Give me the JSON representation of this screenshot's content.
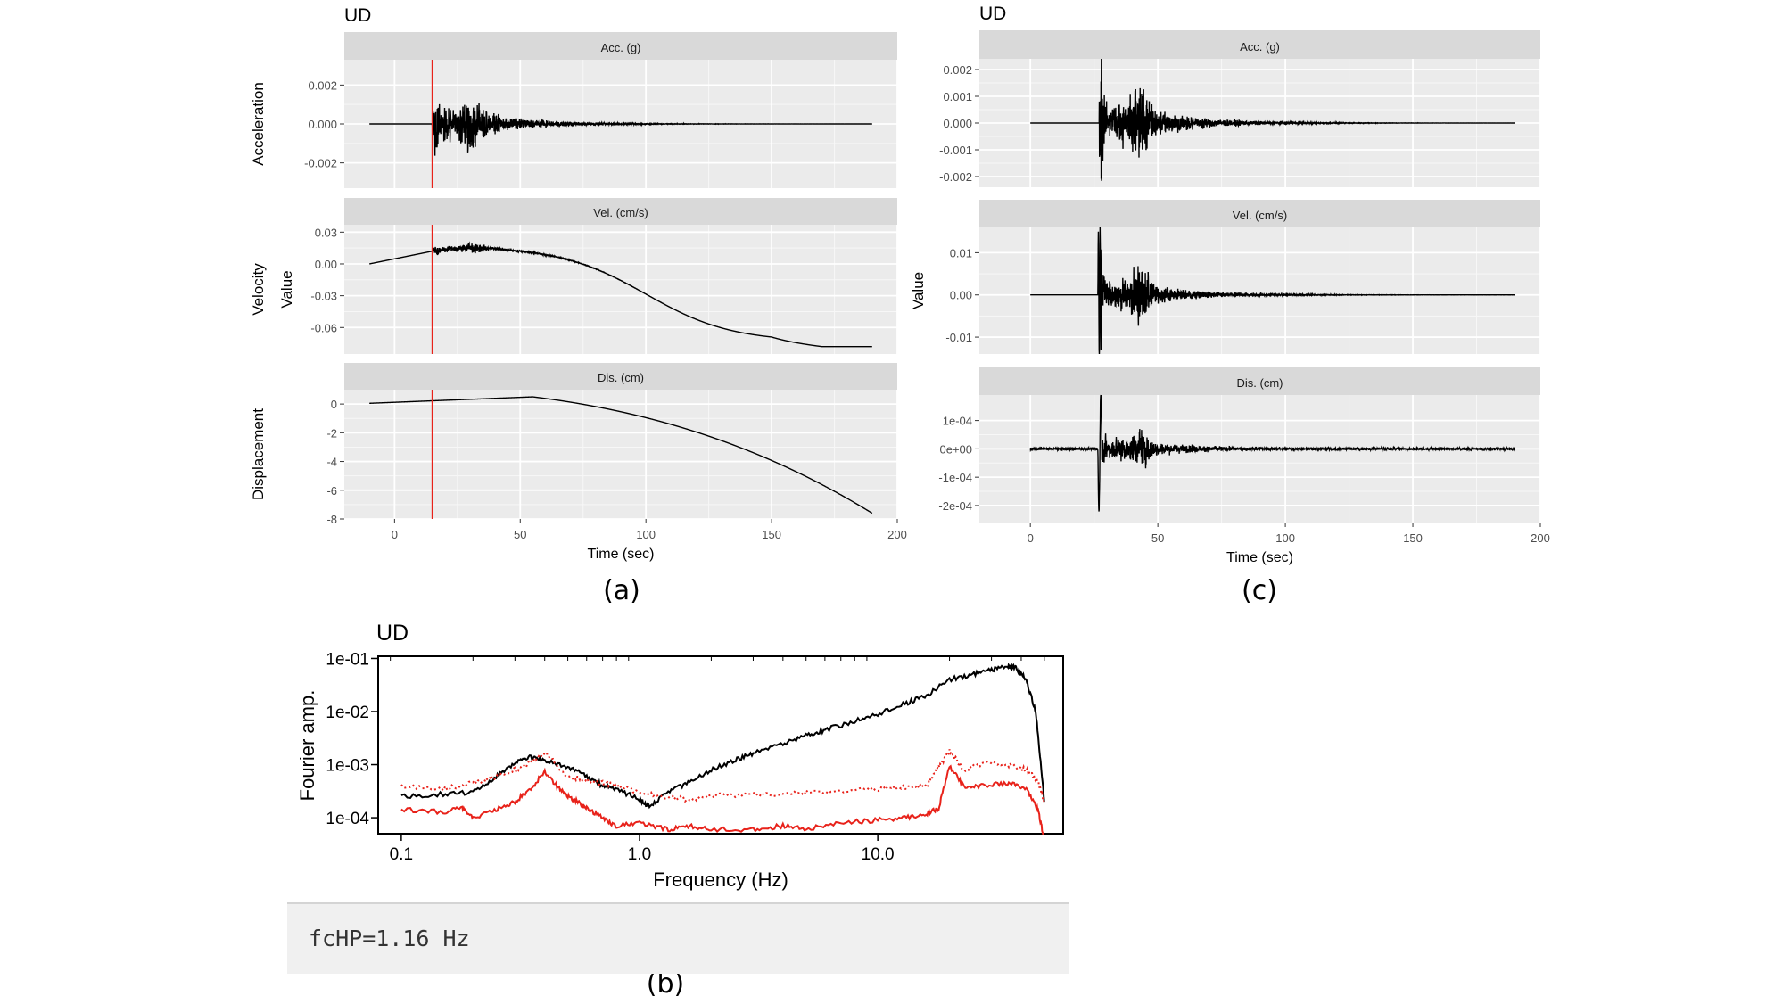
{
  "figure": {
    "captions": {
      "a": "(a)",
      "b": "(b)",
      "c": "(c)"
    }
  },
  "colors": {
    "panel_bg": "#ebebeb",
    "strip_bg": "#d9d9d9",
    "grid": "#ffffff",
    "trace": "#000000",
    "marker": "#e8221a",
    "corrected": "#e8221a"
  },
  "chart_data": [
    {
      "id": "a",
      "type": "line",
      "title": "UD",
      "xlabel": "Time (sec)",
      "ylabel": "Value",
      "xlim": [
        -20,
        200
      ],
      "xticks": [
        0,
        50,
        100,
        150,
        200
      ],
      "grid": true,
      "marker_line_x": 15,
      "facets": [
        {
          "strip": "Acc. (g)",
          "row_label": "Acceleration",
          "ylim": [
            -0.0033,
            0.0033
          ],
          "yticks": [
            {
              "v": 0.002,
              "t": "0.002"
            },
            {
              "v": 0.0,
              "t": "0.000"
            },
            {
              "v": -0.002,
              "t": "-0.002"
            }
          ],
          "signal": "accel_raw",
          "t_range": [
            -10,
            190
          ]
        },
        {
          "strip": "Vel. (cm/s)",
          "row_label": "Velocity",
          "ylim": [
            -0.085,
            0.037
          ],
          "yticks": [
            {
              "v": 0.03,
              "t": "0.03"
            },
            {
              "v": 0.0,
              "t": "0.00"
            },
            {
              "v": -0.03,
              "t": "-0.03"
            },
            {
              "v": -0.06,
              "t": "-0.06"
            }
          ],
          "signal": "vel_raw",
          "t_range": [
            -10,
            190
          ]
        },
        {
          "strip": "Dis. (cm)",
          "row_label": "Displacement",
          "ylim": [
            -8.0,
            1.0
          ],
          "yticks": [
            {
              "v": 0,
              "t": "0"
            },
            {
              "v": -2,
              "t": "-2"
            },
            {
              "v": -4,
              "t": "-4"
            },
            {
              "v": -6,
              "t": "-6"
            },
            {
              "v": -8,
              "t": "-8"
            }
          ],
          "signal": "dis_raw",
          "t_range": [
            -10,
            190
          ]
        }
      ]
    },
    {
      "id": "c",
      "type": "line",
      "title": "UD",
      "xlabel": "Time (sec)",
      "ylabel": "Value",
      "xlim": [
        -20,
        200
      ],
      "xticks": [
        0,
        50,
        100,
        150,
        200
      ],
      "grid": true,
      "facets": [
        {
          "strip": "Acc. (g)",
          "ylim": [
            -0.0024,
            0.0024
          ],
          "yticks": [
            {
              "v": 0.002,
              "t": "0.002"
            },
            {
              "v": 0.001,
              "t": "0.001"
            },
            {
              "v": 0.0,
              "t": "0.000"
            },
            {
              "v": -0.001,
              "t": "-0.001"
            },
            {
              "v": -0.002,
              "t": "-0.002"
            }
          ],
          "signal": "accel",
          "t_range": [
            0,
            190
          ]
        },
        {
          "strip": "Vel. (cm/s)",
          "ylim": [
            -0.014,
            0.016
          ],
          "yticks": [
            {
              "v": 0.01,
              "t": "0.01"
            },
            {
              "v": 0.0,
              "t": "0.00"
            },
            {
              "v": -0.01,
              "t": "-0.01"
            }
          ],
          "signal": "vel",
          "t_range": [
            0,
            190
          ]
        },
        {
          "strip": "Dis. (cm)",
          "ylim": [
            -0.00026,
            0.00019
          ],
          "yticks": [
            {
              "v": 0.0001,
              "t": "1e-04"
            },
            {
              "v": 0.0,
              "t": "0e+00"
            },
            {
              "v": -0.0001,
              "t": "-1e-04"
            },
            {
              "v": -0.0002,
              "t": "-2e-04"
            }
          ],
          "signal": "dis",
          "t_range": [
            0,
            190
          ]
        }
      ]
    },
    {
      "id": "b",
      "type": "line",
      "title": "UD",
      "xlabel": "Frequency (Hz)",
      "ylabel": "Fourier amp.",
      "x_scale": "log",
      "y_scale": "log",
      "xlim": [
        0.08,
        60
      ],
      "ylim": [
        5e-05,
        0.11
      ],
      "xticks": [
        {
          "v": 0.1,
          "t": "0.1"
        },
        {
          "v": 1.0,
          "t": "1.0"
        },
        {
          "v": 10.0,
          "t": "10.0"
        }
      ],
      "yticks": [
        {
          "v": 0.1,
          "t": "1e-01"
        },
        {
          "v": 0.01,
          "t": "1e-02"
        },
        {
          "v": 0.001,
          "t": "1e-03"
        },
        {
          "v": 0.0001,
          "t": "1e-04"
        }
      ],
      "grid": false,
      "series": [
        {
          "color": "#000000",
          "style": "solid",
          "x": [
            0.1,
            0.15,
            0.2,
            0.25,
            0.3,
            0.35,
            0.4,
            0.5,
            0.6,
            0.7,
            0.8,
            1.0,
            1.1,
            1.3,
            1.6,
            2.0,
            2.5,
            3.0,
            4.0,
            5.0,
            6.0,
            8.0,
            10.0,
            13.0,
            16.0,
            20.0,
            25.0,
            30.0,
            35.0,
            38.0,
            42.0,
            46.0,
            50.0
          ],
          "y": [
            0.00025,
            0.00028,
            0.0003,
            0.0006,
            0.0011,
            0.0014,
            0.0012,
            0.0009,
            0.0006,
            0.0004,
            0.00035,
            0.00022,
            0.00016,
            0.0003,
            0.00045,
            0.0008,
            0.0012,
            0.0016,
            0.0025,
            0.0035,
            0.0045,
            0.0065,
            0.009,
            0.014,
            0.02,
            0.04,
            0.05,
            0.06,
            0.07,
            0.065,
            0.04,
            0.01,
            0.0002
          ]
        },
        {
          "color": "#e8221a",
          "style": "dotted",
          "x": [
            0.1,
            0.15,
            0.2,
            0.25,
            0.3,
            0.35,
            0.4,
            0.5,
            0.6,
            0.7,
            0.8,
            1.0,
            1.3,
            1.6,
            2.0,
            3.0,
            4.0,
            5.0,
            7.0,
            10.0,
            13.0,
            16.0,
            18.0,
            20.0,
            23.0,
            28.0,
            35.0,
            42.0,
            47.0,
            50.0
          ],
          "y": [
            0.0004,
            0.00035,
            0.00045,
            0.0006,
            0.0008,
            0.0011,
            0.0017,
            0.0006,
            0.0005,
            0.00045,
            0.0004,
            0.0003,
            0.00025,
            0.00022,
            0.00026,
            0.00028,
            0.00027,
            0.0003,
            0.00032,
            0.00035,
            0.00038,
            0.0004,
            0.0009,
            0.0018,
            0.0008,
            0.0011,
            0.001,
            0.0008,
            0.0005,
            0.00018
          ]
        },
        {
          "color": "#e8221a",
          "style": "solid",
          "x": [
            0.1,
            0.15,
            0.18,
            0.2,
            0.25,
            0.3,
            0.35,
            0.4,
            0.45,
            0.5,
            0.55,
            0.6,
            0.7,
            0.8,
            1.0,
            1.3,
            1.6,
            2.0,
            3.0,
            4.0,
            5.0,
            7.0,
            10.0,
            13.0,
            16.0,
            18.0,
            20.0,
            23.0,
            28.0,
            35.0,
            42.0,
            47.0,
            50.0
          ],
          "y": [
            0.00014,
            0.00013,
            0.00015,
            0.0001,
            0.00014,
            0.0002,
            0.00035,
            0.00075,
            0.0004,
            0.00025,
            0.0002,
            0.00015,
            0.0001,
            7e-05,
            8e-05,
            6e-05,
            7e-05,
            6e-05,
            6e-05,
            7e-05,
            6e-05,
            8e-05,
            9e-05,
            0.0001,
            0.00012,
            0.00015,
            0.0009,
            0.0004,
            0.0004,
            0.00045,
            0.00035,
            0.00014,
            4e-05
          ]
        }
      ]
    }
  ],
  "parameter_box": {
    "text": "fcHP=1.16 Hz"
  }
}
